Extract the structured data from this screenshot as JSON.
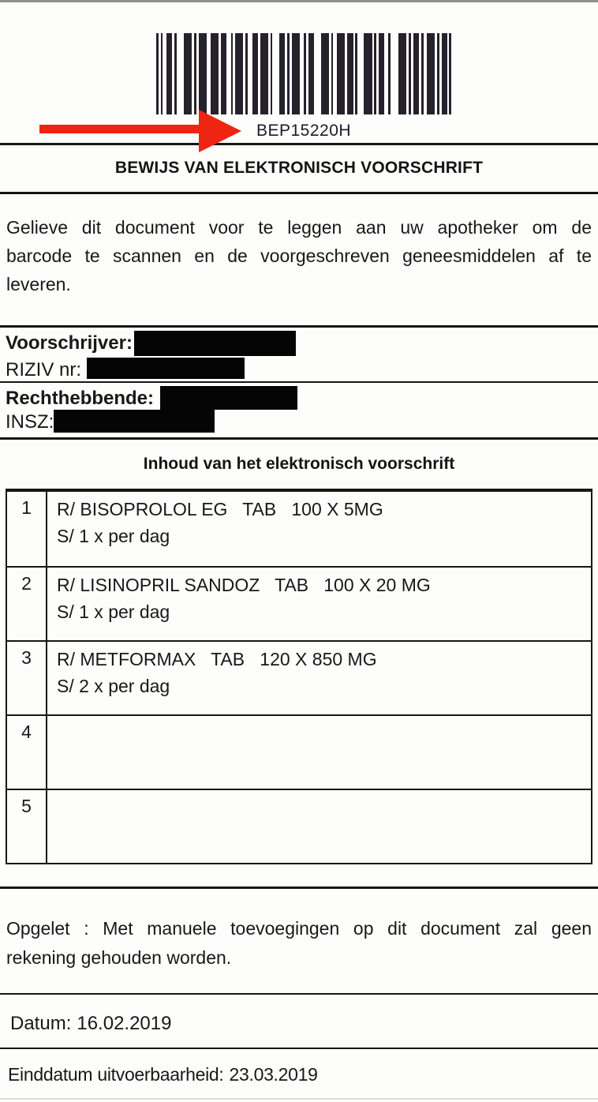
{
  "barcode": {
    "value": "BEP15220H",
    "pattern": [
      3,
      3,
      3,
      5,
      8,
      3,
      3,
      10,
      11,
      3,
      3,
      3,
      11,
      5,
      11,
      3,
      8,
      6,
      3,
      3,
      11,
      3,
      3,
      6,
      8,
      3,
      11,
      3,
      3,
      9,
      8,
      3,
      3,
      3,
      11,
      6,
      3,
      3,
      8,
      9,
      11,
      3,
      3,
      5,
      11,
      3,
      8,
      3,
      3,
      9,
      11,
      3,
      3,
      3,
      8,
      5,
      3,
      11,
      11,
      3,
      3,
      3,
      8,
      3,
      3,
      5,
      11,
      3,
      3,
      3,
      8,
      2,
      3
    ],
    "bar_color": "#25222b"
  },
  "arrow": {
    "color": "#ee2512"
  },
  "header": {
    "title": "BEWIJS VAN ELEKTRONISCH VOORSCHRIFT"
  },
  "intro": {
    "line1": "Gelieve dit document voor te leggen aan uw apotheker om de",
    "line2": "barcode te scannen en de voorgeschreven geneesmiddelen af te",
    "line3": "leveren."
  },
  "prescriber": {
    "label": "Voorschrijver:",
    "riziv_label": "RIZIV nr:"
  },
  "patient": {
    "label": "Rechthebbende:",
    "insz_label": "INSZ:"
  },
  "content": {
    "heading": "Inhoud van het elektronisch voorschrift",
    "rows": [
      {
        "nr": "1",
        "line1": "R/ BISOPROLOL EG   TAB   100 X 5MG",
        "line2": "S/ 1 x per dag"
      },
      {
        "nr": "2",
        "line1": "R/ LISINOPRIL SANDOZ   TAB   100 X 20 MG",
        "line2": "S/ 1 x per dag"
      },
      {
        "nr": "3",
        "line1": "R/ METFORMAX   TAB   120 X 850 MG",
        "line2": "S/ 2 x per dag"
      },
      {
        "nr": "4",
        "line1": "",
        "line2": ""
      },
      {
        "nr": "5",
        "line1": "",
        "line2": ""
      }
    ]
  },
  "notice": {
    "line1": "Opgelet : Met manuele toevoegingen op dit document zal geen",
    "line2": "rekening gehouden worden."
  },
  "dates": {
    "date_label": "Datum:",
    "date_value": "16.02.2019",
    "end_label": "Einddatum uitvoerbaarheid:",
    "end_value": "23.03.2019"
  }
}
